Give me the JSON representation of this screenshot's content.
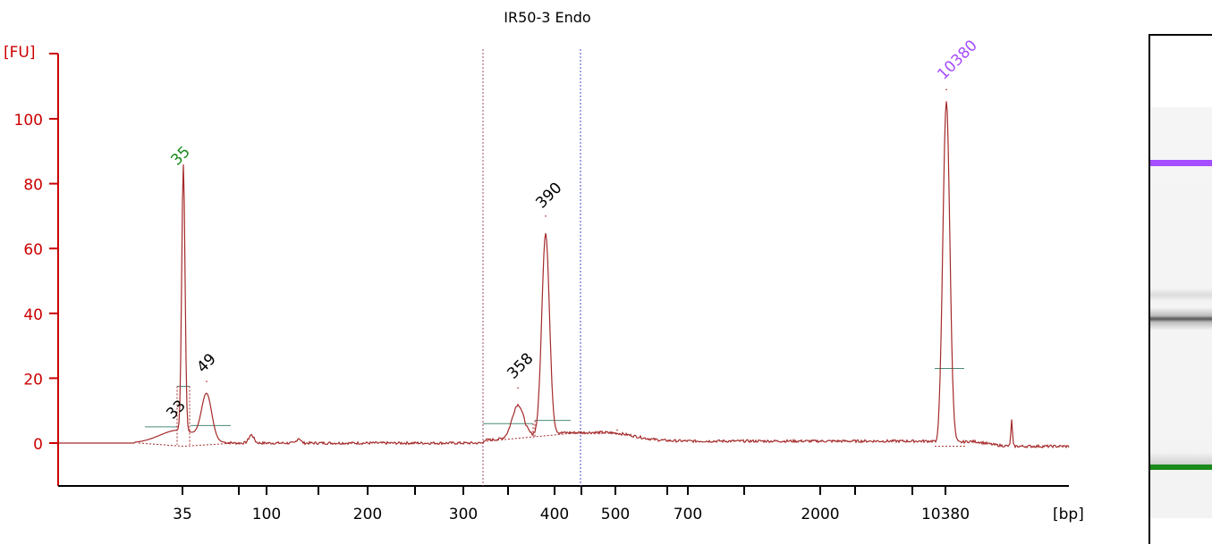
{
  "chart_data": {
    "type": "line",
    "title": "IR50-3 Endo",
    "ylabel": "[FU]",
    "xlabel": "[bp]",
    "ylim": [
      -12,
      120
    ],
    "yticks": [
      0,
      20,
      40,
      60,
      80,
      100
    ],
    "xtick_labels": [
      "35",
      "100",
      "200",
      "300",
      "400",
      "500",
      "700",
      "2000",
      "10380"
    ],
    "series": [
      {
        "name": "",
        "color": "#a52a2a",
        "points": [
          {
            "bp": "35",
            "fu": 83
          },
          {
            "bp": "49",
            "fu": 19
          },
          {
            "bp": "358",
            "fu": 17
          },
          {
            "bp": "390",
            "fu": 70
          },
          {
            "bp": "500",
            "fu": 4
          },
          {
            "bp": "10380",
            "fu": 109
          }
        ]
      }
    ],
    "peak_labels": [
      {
        "text": "35",
        "color": "#1a8a1a"
      },
      {
        "text": "49",
        "color": "#000000"
      },
      {
        "text": "33",
        "color": "#000000"
      },
      {
        "text": "358",
        "color": "#000000"
      },
      {
        "text": "390",
        "color": "#000000"
      },
      {
        "text": "10380",
        "color": "#a64dff"
      }
    ],
    "axis_color": "#cc0000",
    "line_color": "#a52a2a",
    "grid": false
  },
  "gel": {
    "bands": [
      {
        "name": "upper-marker",
        "color": "#a64dff"
      },
      {
        "name": "sample-band",
        "color": "#555555"
      },
      {
        "name": "lower-marker",
        "color": "#1a8a1a"
      }
    ]
  }
}
